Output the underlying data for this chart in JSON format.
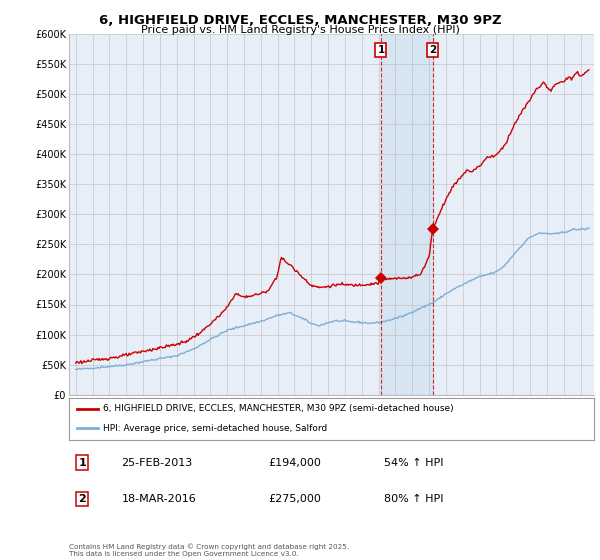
{
  "title": "6, HIGHFIELD DRIVE, ECCLES, MANCHESTER, M30 9PZ",
  "subtitle": "Price paid vs. HM Land Registry's House Price Index (HPI)",
  "legend_line1": "6, HIGHFIELD DRIVE, ECCLES, MANCHESTER, M30 9PZ (semi-detached house)",
  "legend_line2": "HPI: Average price, semi-detached house, Salford",
  "transaction1_date": "25-FEB-2013",
  "transaction1_price": "£194,000",
  "transaction1_hpi": "54% ↑ HPI",
  "transaction2_date": "18-MAR-2016",
  "transaction2_price": "£275,000",
  "transaction2_hpi": "80% ↑ HPI",
  "footnote": "Contains HM Land Registry data © Crown copyright and database right 2025.\nThis data is licensed under the Open Government Licence v3.0.",
  "hpi_color": "#7bafd4",
  "price_color": "#cc0000",
  "background_color": "#ffffff",
  "plot_bg_color": "#e8eef8",
  "grid_color": "#bbbbbb",
  "shade_color": "#d0e0f0",
  "t1_x": 2013.14,
  "t1_y": 194000,
  "t2_x": 2016.21,
  "t2_y": 275000,
  "ylim": [
    0,
    600000
  ],
  "xlim_left": 1994.6,
  "xlim_right": 2025.8
}
